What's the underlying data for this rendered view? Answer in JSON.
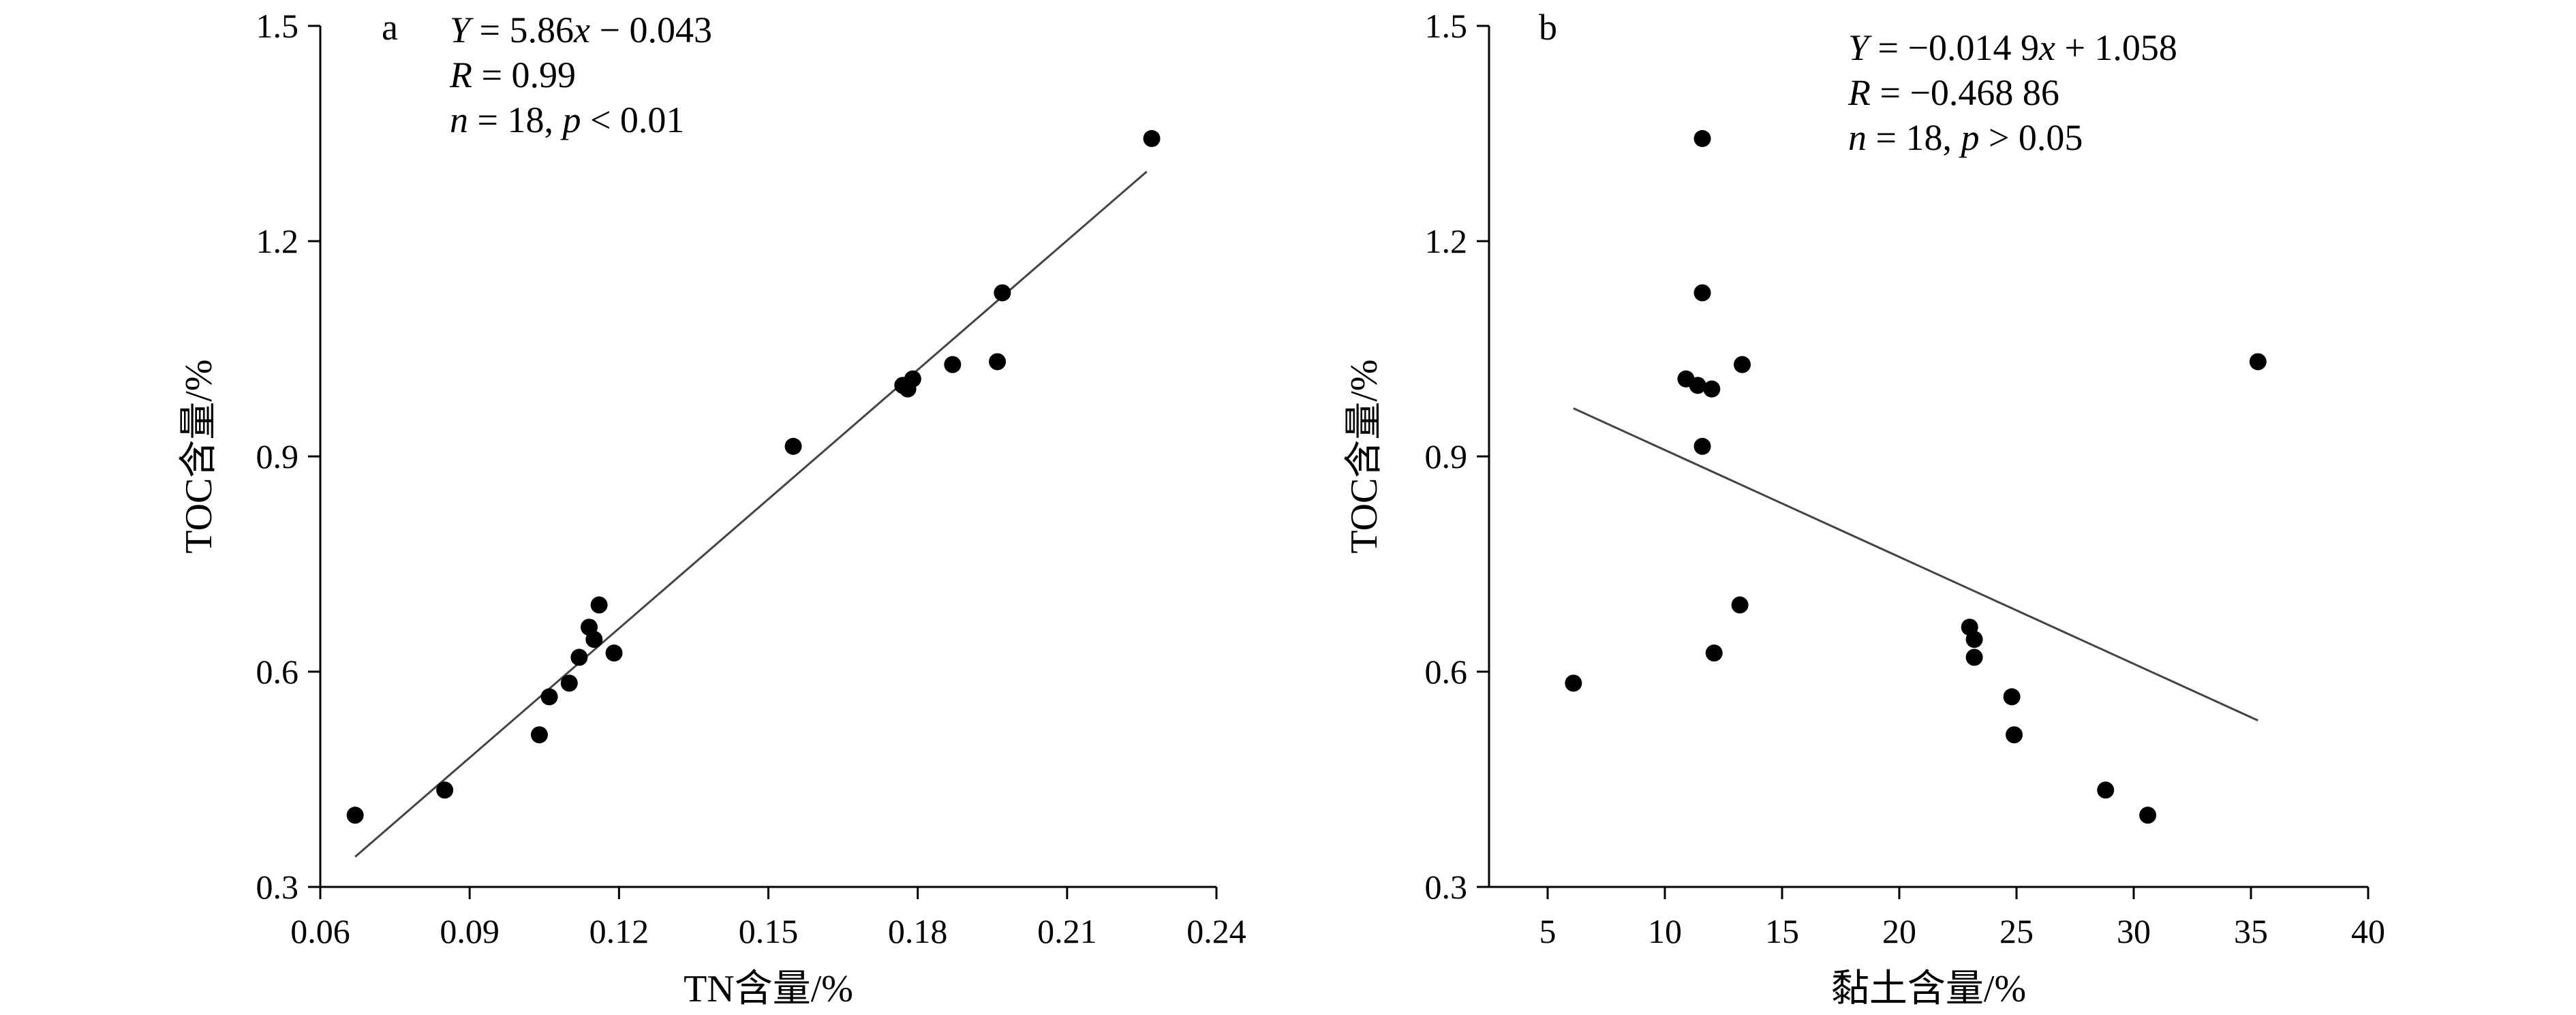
{
  "chart_data": [
    {
      "type": "scatter",
      "panel_label": "a",
      "xlabel": "TN含量/%",
      "ylabel": "TOC含量/%",
      "xlim": [
        0.06,
        0.24
      ],
      "ylim": [
        0.3,
        1.5
      ],
      "x_ticks": [
        0.06,
        0.09,
        0.12,
        0.15,
        0.18,
        0.21,
        0.24
      ],
      "x_tick_labels": [
        "0.06",
        "0.09",
        "0.12",
        "0.15",
        "0.18",
        "0.21",
        "0.24"
      ],
      "y_ticks": [
        0.3,
        0.6,
        0.9,
        1.2,
        1.5
      ],
      "y_tick_labels": [
        "0.3",
        "0.6",
        "0.9",
        "1.2",
        "1.5"
      ],
      "annotations": [
        "Y = 5.86x − 0.043",
        "R = 0.99",
        "n = 18, p < 0.01"
      ],
      "points": [
        {
          "x": 0.067,
          "y": 0.4
        },
        {
          "x": 0.085,
          "y": 0.435
        },
        {
          "x": 0.104,
          "y": 0.512
        },
        {
          "x": 0.106,
          "y": 0.565
        },
        {
          "x": 0.11,
          "y": 0.584
        },
        {
          "x": 0.112,
          "y": 0.62
        },
        {
          "x": 0.114,
          "y": 0.662
        },
        {
          "x": 0.115,
          "y": 0.645
        },
        {
          "x": 0.116,
          "y": 0.693
        },
        {
          "x": 0.119,
          "y": 0.626
        },
        {
          "x": 0.155,
          "y": 0.914
        },
        {
          "x": 0.177,
          "y": 0.999
        },
        {
          "x": 0.178,
          "y": 0.994
        },
        {
          "x": 0.179,
          "y": 1.008
        },
        {
          "x": 0.187,
          "y": 1.028
        },
        {
          "x": 0.196,
          "y": 1.032
        },
        {
          "x": 0.197,
          "y": 1.128
        },
        {
          "x": 0.227,
          "y": 1.343
        }
      ],
      "fit_line": {
        "x": [
          0.067,
          0.226
        ],
        "y": [
          0.342,
          1.297
        ]
      }
    },
    {
      "type": "scatter",
      "panel_label": "b",
      "xlabel": "黏土含量/%",
      "ylabel": "TOC含量/%",
      "xlim": [
        2.5,
        40
      ],
      "ylim": [
        0.3,
        1.5
      ],
      "x_ticks": [
        5,
        10,
        15,
        20,
        25,
        30,
        35,
        40
      ],
      "x_tick_labels": [
        "5",
        "10",
        "15",
        "20",
        "25",
        "30",
        "35",
        "40"
      ],
      "y_ticks": [
        0.3,
        0.6,
        0.9,
        1.2,
        1.5
      ],
      "y_tick_labels": [
        "0.3",
        "0.6",
        "0.9",
        "1.2",
        "1.5"
      ],
      "annotations": [
        "Y = −0.014 9x + 1.058",
        "R = −0.468 86",
        "n = 18, p > 0.05"
      ],
      "points": [
        {
          "x": 6.1,
          "y": 0.584
        },
        {
          "x": 10.9,
          "y": 1.008
        },
        {
          "x": 11.4,
          "y": 0.999
        },
        {
          "x": 11.6,
          "y": 1.343
        },
        {
          "x": 11.6,
          "y": 1.128
        },
        {
          "x": 11.6,
          "y": 0.914
        },
        {
          "x": 12.0,
          "y": 0.994
        },
        {
          "x": 12.1,
          "y": 0.626
        },
        {
          "x": 13.2,
          "y": 0.693
        },
        {
          "x": 13.3,
          "y": 1.028
        },
        {
          "x": 23.0,
          "y": 0.662
        },
        {
          "x": 23.2,
          "y": 0.645
        },
        {
          "x": 23.2,
          "y": 0.62
        },
        {
          "x": 24.8,
          "y": 0.565
        },
        {
          "x": 24.9,
          "y": 0.512
        },
        {
          "x": 28.8,
          "y": 0.435
        },
        {
          "x": 30.6,
          "y": 0.4
        },
        {
          "x": 35.3,
          "y": 1.032
        }
      ],
      "fit_line": {
        "x": [
          6.1,
          35.3
        ],
        "y": [
          0.967,
          0.532
        ]
      }
    }
  ]
}
